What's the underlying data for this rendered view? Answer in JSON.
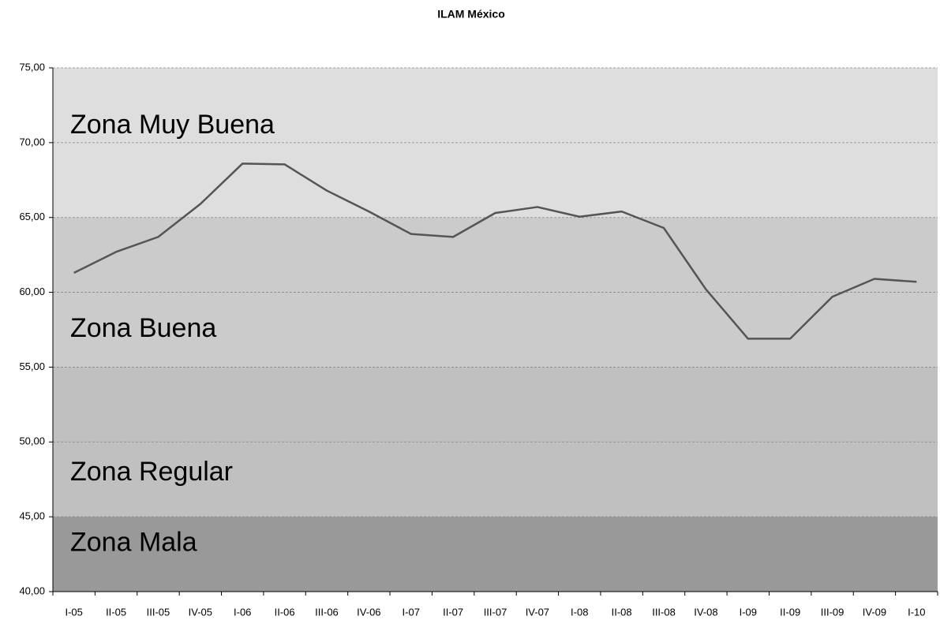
{
  "chart_data": {
    "type": "line",
    "title": "ILAM México",
    "categories": [
      "I-05",
      "II-05",
      "III-05",
      "IV-05",
      "I-06",
      "II-06",
      "III-06",
      "IV-06",
      "I-07",
      "II-07",
      "III-07",
      "IV-07",
      "I-08",
      "II-08",
      "III-08",
      "IV-08",
      "I-09",
      "II-09",
      "III-09",
      "IV-09",
      "I-10"
    ],
    "series": [
      {
        "name": "ILAM México",
        "color": "#555555",
        "values": [
          61.3,
          62.7,
          63.7,
          65.9,
          68.6,
          68.55,
          66.8,
          65.4,
          63.9,
          63.7,
          65.3,
          65.7,
          65.05,
          65.4,
          64.3,
          60.2,
          56.9,
          56.9,
          59.7,
          60.9,
          60.7
        ]
      }
    ],
    "zones": [
      {
        "label": "Zona Muy Buena",
        "from": 65,
        "to": 75,
        "color": "#dedede"
      },
      {
        "label": "Zona Buena",
        "from": 55,
        "to": 65,
        "color": "#cbcbcb"
      },
      {
        "label": "Zona Regular",
        "from": 45,
        "to": 55,
        "color": "#c0c0c0"
      },
      {
        "label": "Zona Mala",
        "from": 40,
        "to": 45,
        "color": "#999999"
      }
    ],
    "ylim": [
      40,
      75
    ],
    "yticks": [
      {
        "value": 40,
        "label": "40,00"
      },
      {
        "value": 45,
        "label": "45,00"
      },
      {
        "value": 50,
        "label": "50,00"
      },
      {
        "value": 55,
        "label": "55,00"
      },
      {
        "value": 60,
        "label": "60,00"
      },
      {
        "value": 65,
        "label": "65,00"
      },
      {
        "value": 70,
        "label": "70,00"
      },
      {
        "value": 75,
        "label": "75,00"
      }
    ],
    "grid": true
  }
}
